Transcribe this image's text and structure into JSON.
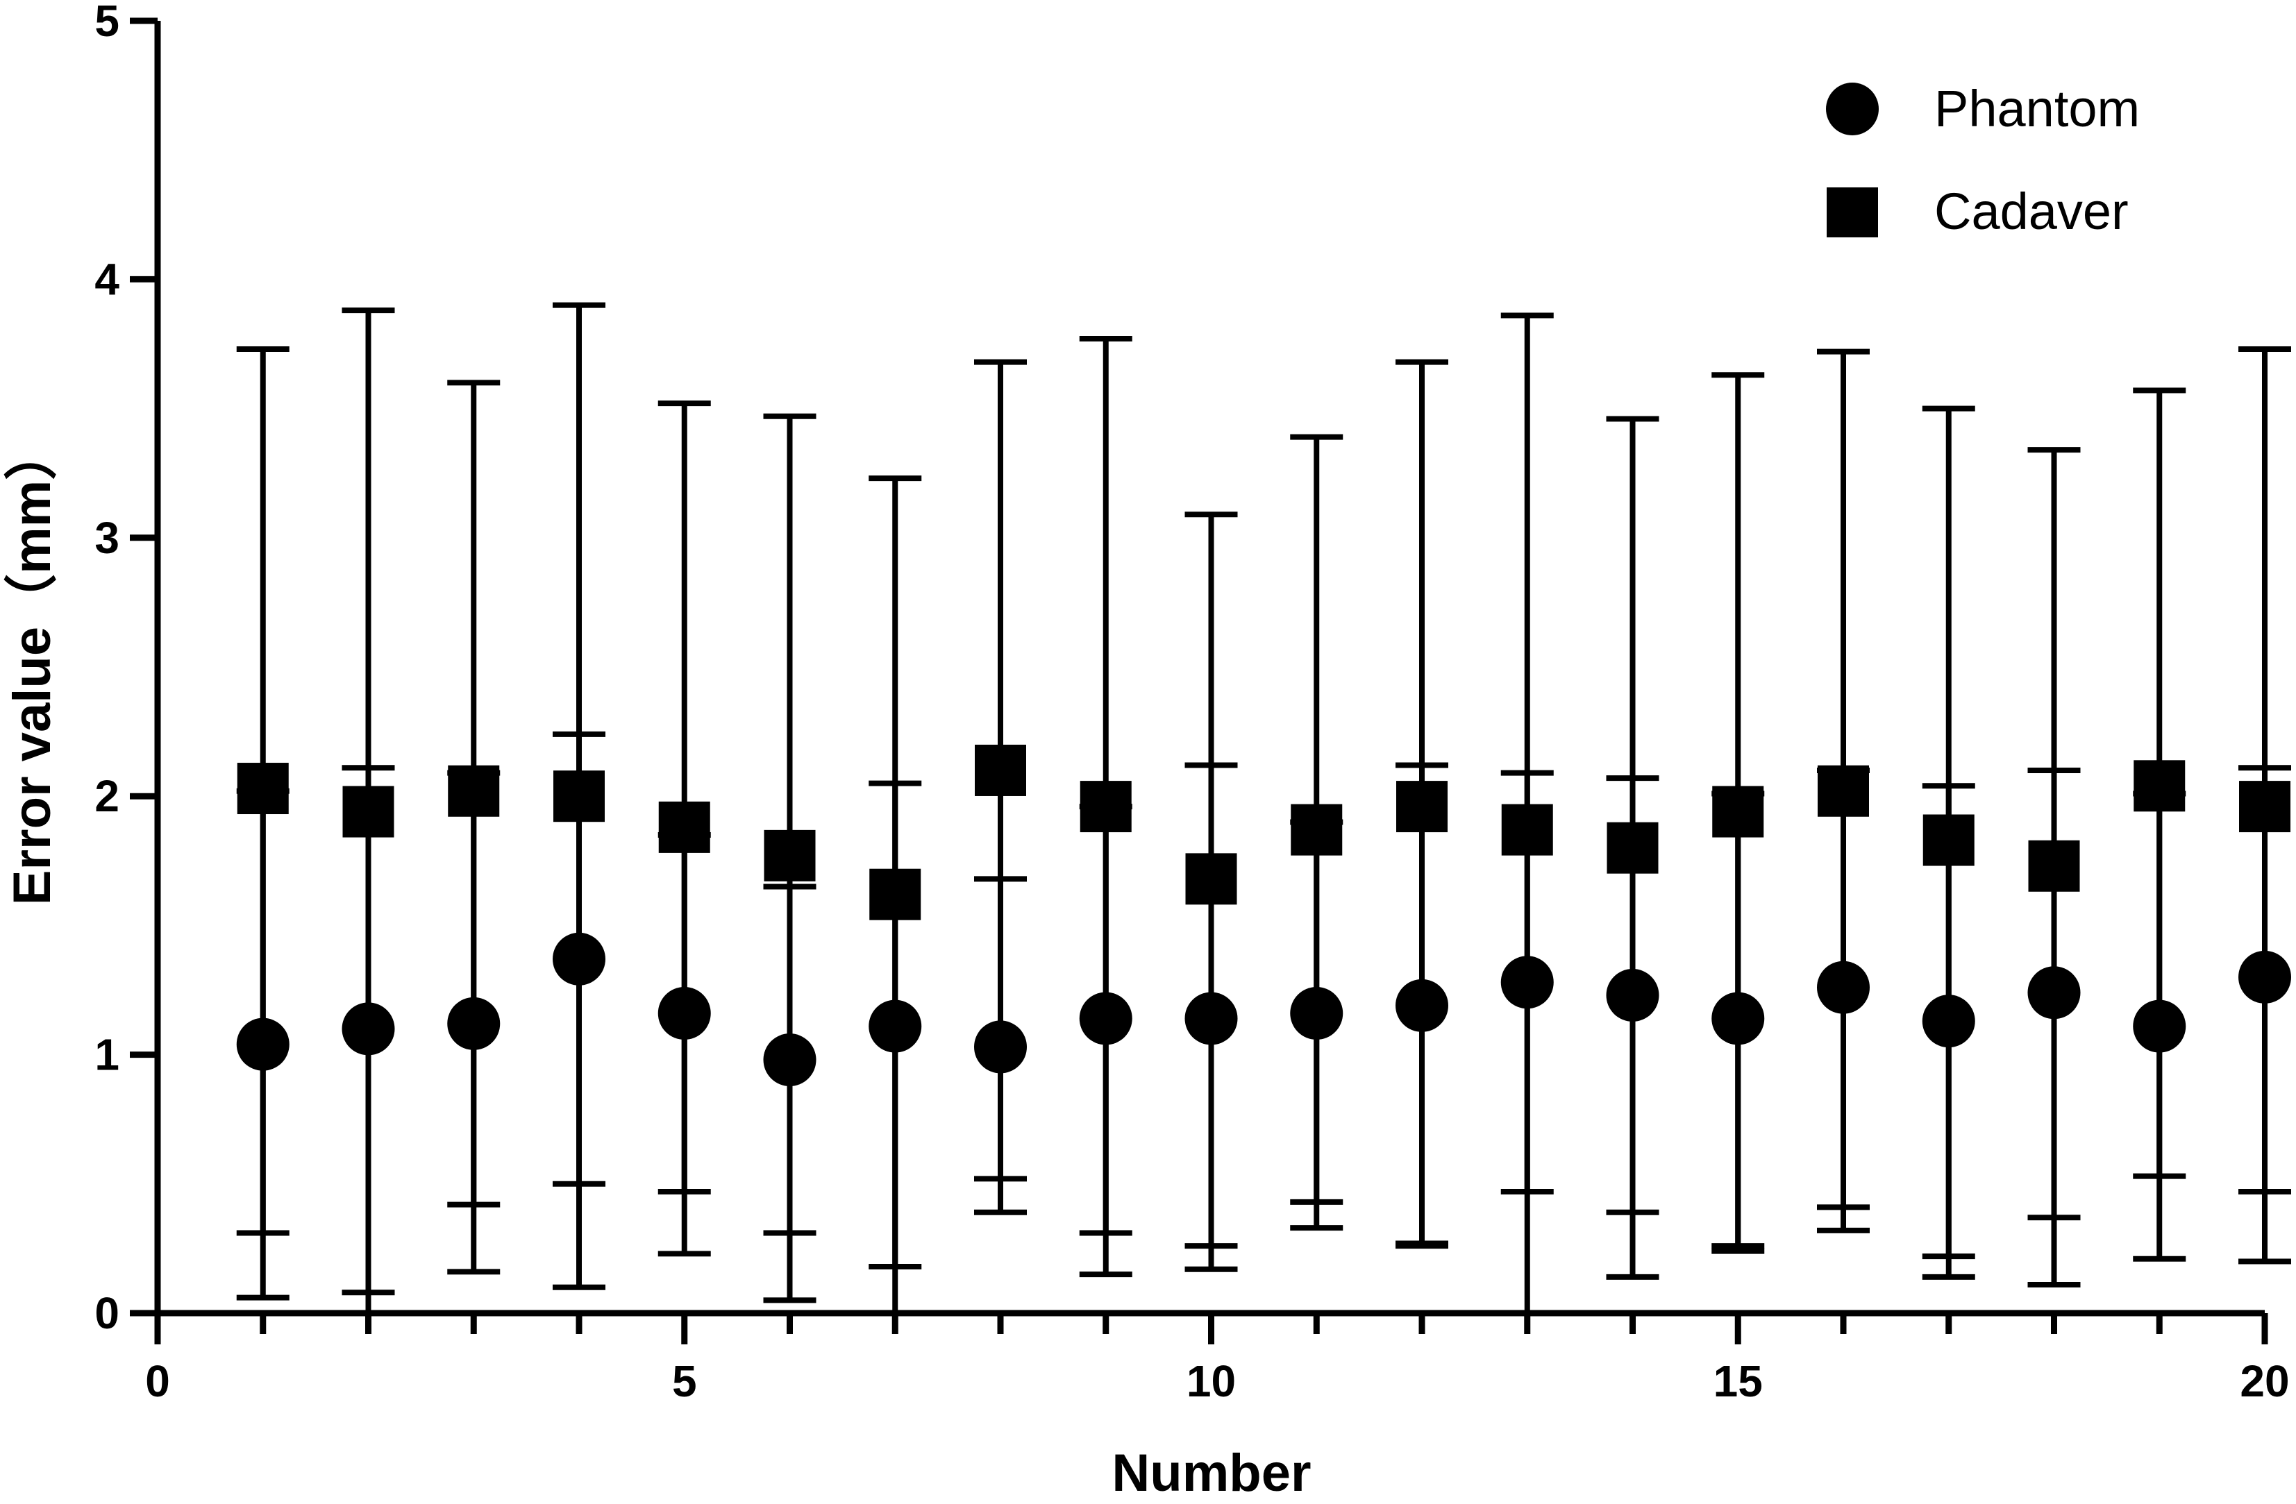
{
  "chart_data": {
    "type": "scatter",
    "title": "",
    "xlabel": "Number",
    "ylabel": "Error value（mm）",
    "xlim": [
      0,
      20
    ],
    "ylim": [
      0,
      5
    ],
    "xticks_major": [
      0,
      5,
      10,
      15,
      20
    ],
    "xtick_labels": [
      "0",
      "5",
      "10",
      "15",
      "20"
    ],
    "xticks_minor": [
      1,
      2,
      3,
      4,
      6,
      7,
      8,
      9,
      11,
      12,
      13,
      14,
      16,
      17,
      18,
      19
    ],
    "yticks": [
      0,
      1,
      2,
      3,
      4,
      5
    ],
    "ytick_labels": [
      "0",
      "1",
      "2",
      "3",
      "4",
      "5"
    ],
    "grid": false,
    "legend_position": "top-right",
    "x": [
      1,
      2,
      3,
      4,
      5,
      6,
      7,
      8,
      9,
      10,
      11,
      12,
      13,
      14,
      15,
      16,
      17,
      18,
      19,
      20
    ],
    "series": [
      {
        "name": "Phantom",
        "marker": "circle",
        "color": "#000000",
        "mean": [
          1.04,
          1.1,
          1.12,
          1.37,
          1.16,
          0.98,
          1.11,
          1.03,
          1.14,
          1.14,
          1.16,
          1.19,
          1.28,
          1.23,
          1.14,
          1.26,
          1.13,
          1.24,
          1.11,
          1.3
        ],
        "upper": [
          2.02,
          2.11,
          2.09,
          2.24,
          1.85,
          1.65,
          2.05,
          1.68,
          1.96,
          2.12,
          1.9,
          2.12,
          2.09,
          2.07,
          2.01,
          2.1,
          2.04,
          2.1,
          2.01,
          2.11
        ],
        "lower": [
          0.06,
          0.08,
          0.16,
          0.1,
          0.23,
          0.05,
          0.18,
          0.39,
          0.15,
          0.17,
          0.33,
          0.26,
          0.0,
          0.14,
          0.24,
          0.32,
          0.14,
          0.11,
          0.21,
          0.2
        ]
      },
      {
        "name": "Cadaver",
        "marker": "square",
        "color": "#000000",
        "mean": [
          2.03,
          1.94,
          2.02,
          2.0,
          1.88,
          1.77,
          1.62,
          2.1,
          1.96,
          1.68,
          1.87,
          1.96,
          1.87,
          1.8,
          1.94,
          2.02,
          1.83,
          1.73,
          2.04,
          1.96
        ],
        "upper": [
          3.73,
          3.88,
          3.6,
          3.9,
          3.52,
          3.47,
          3.23,
          3.68,
          3.77,
          3.09,
          3.39,
          3.68,
          3.86,
          3.46,
          3.63,
          3.72,
          3.5,
          3.34,
          3.57,
          3.73
        ],
        "lower": [
          0.31,
          0.0,
          0.42,
          0.5,
          0.47,
          0.31,
          0.0,
          0.52,
          0.31,
          0.26,
          0.43,
          0.27,
          0.47,
          0.39,
          0.26,
          0.41,
          0.22,
          0.37,
          0.53,
          0.47
        ]
      }
    ]
  }
}
